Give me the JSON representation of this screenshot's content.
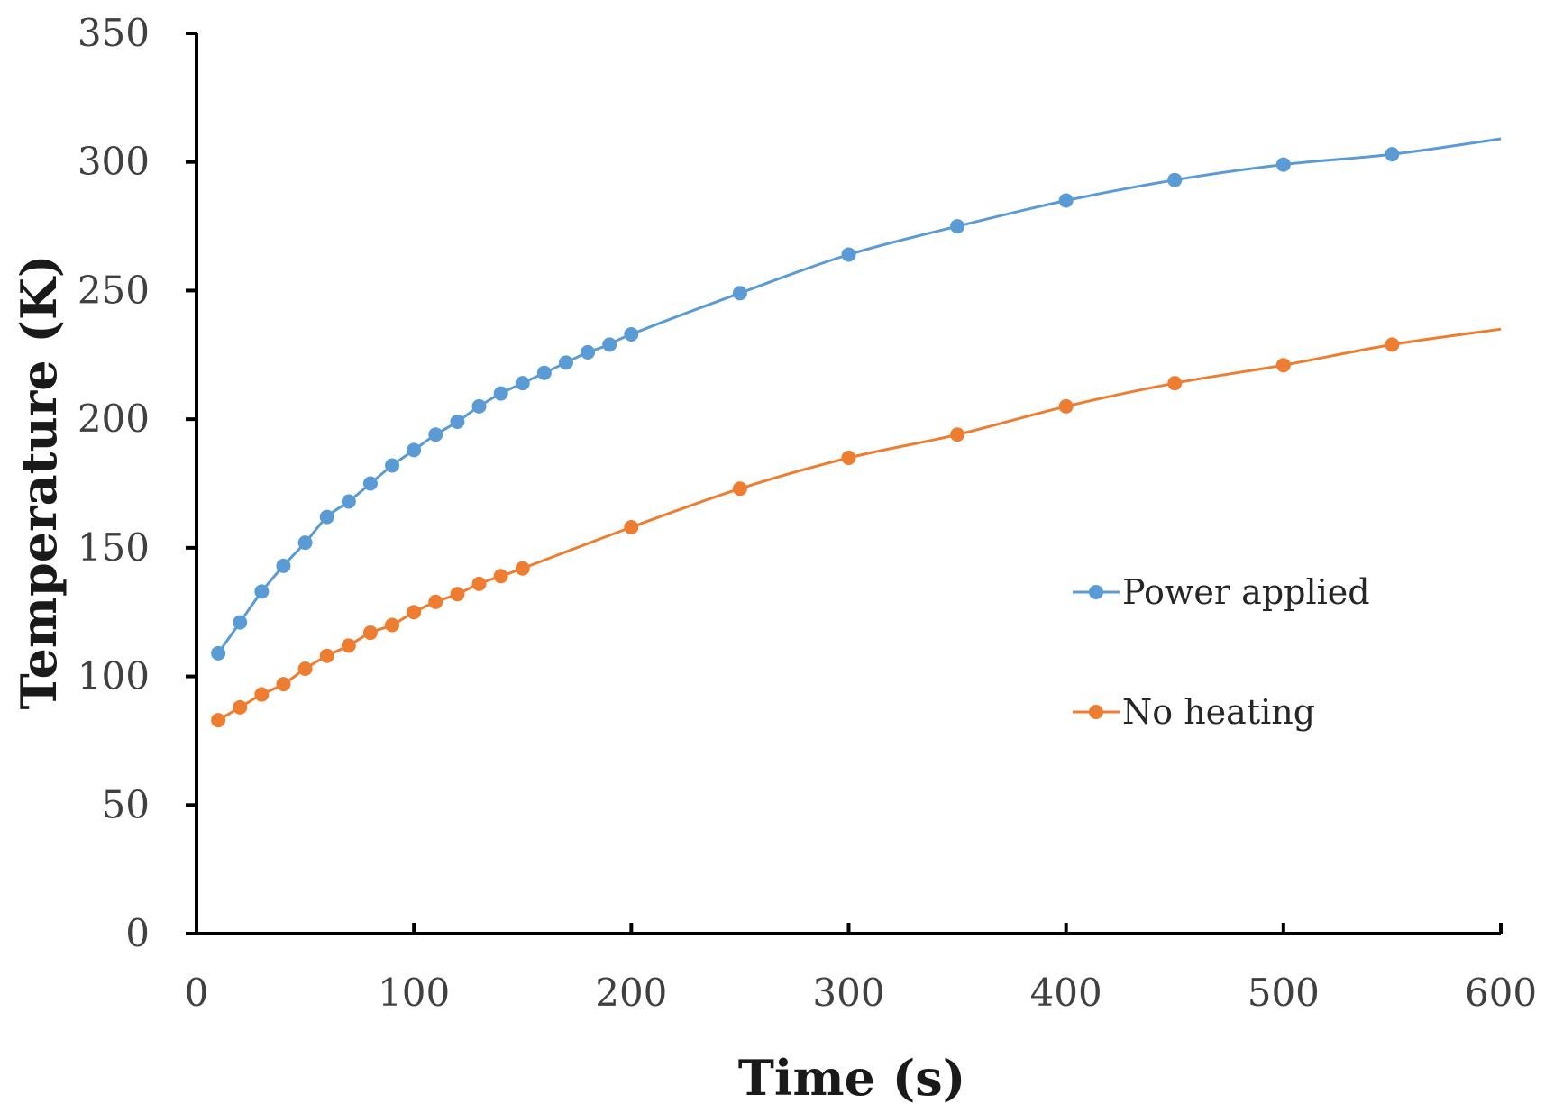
{
  "chart_data": {
    "type": "line",
    "xlabel": "Time (s)",
    "ylabel": "Temperature (K)",
    "xlim": [
      0,
      600
    ],
    "ylim": [
      0,
      350
    ],
    "xticks": [
      0,
      100,
      200,
      300,
      400,
      500,
      600
    ],
    "yticks": [
      0,
      50,
      100,
      150,
      200,
      250,
      300,
      350
    ],
    "grid": false,
    "legend_position": "right-middle",
    "series": [
      {
        "name": "Power applied",
        "color": "#5b9bd5",
        "x": [
          10,
          20,
          30,
          40,
          50,
          60,
          70,
          80,
          90,
          100,
          110,
          120,
          130,
          140,
          150,
          160,
          170,
          180,
          190,
          200,
          250,
          300,
          350,
          400,
          450,
          500,
          550
        ],
        "y": [
          109,
          121,
          133,
          143,
          152,
          162,
          168,
          175,
          182,
          188,
          194,
          199,
          205,
          210,
          214,
          218,
          222,
          226,
          229,
          233,
          249,
          264,
          275,
          285,
          293,
          299,
          303
        ],
        "end": [
          600,
          309
        ]
      },
      {
        "name": "No heating",
        "color": "#ed7d31",
        "x": [
          10,
          20,
          30,
          40,
          50,
          60,
          70,
          80,
          90,
          100,
          110,
          120,
          130,
          140,
          150,
          200,
          250,
          300,
          350,
          400,
          450,
          500,
          550
        ],
        "y": [
          83,
          88,
          93,
          97,
          103,
          108,
          112,
          117,
          120,
          125,
          129,
          132,
          136,
          139,
          142,
          158,
          173,
          185,
          194,
          205,
          214,
          221,
          229
        ],
        "end": [
          600,
          235
        ]
      }
    ]
  }
}
